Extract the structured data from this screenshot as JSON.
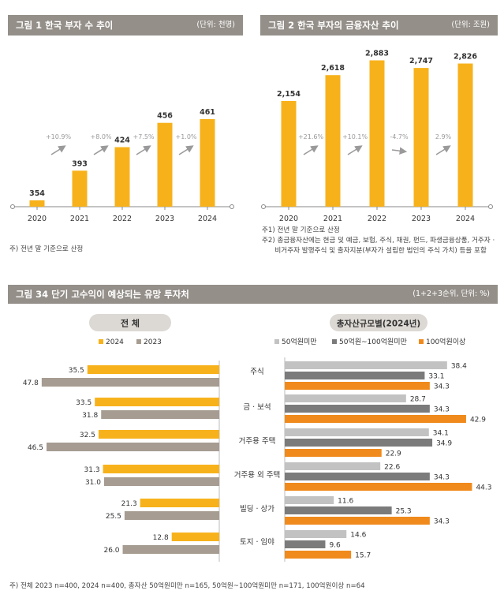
{
  "fig1": {
    "title": "그림 1  한국 부자 수 추이",
    "unit": "(단위: 천명)",
    "note": "주) 전년 말 기준으로 산정"
  },
  "fig2": {
    "title": "그림 2  한국 부자의 금융자산 추이",
    "unit": "(단위: 조원)",
    "notes": [
      "주1) 전년 말 기준으로 산정",
      "주2) 총금융자산에는 현금 및 예금, 보험, 주식, 채권, 펀드, 파생금융상품, 거주자 ·",
      "      비거주자 발행주식 및 출자지분(부자가 설립한 법인의 주식 가치) 등을 포함"
    ]
  },
  "fig34": {
    "title": "그림 34  단기 고수익이 예상되는 유망 투자처",
    "unit": "(1+2+3순위, 단위: %)",
    "left_header": "전 체",
    "right_header": "총자산규모별(2024년)",
    "note": "주) 전체 2023 n=400, 2024 n=400, 총자산 50억원미만 n=165, 50억원~100억원미만 n=171, 100억원이상 n=64"
  },
  "colors": {
    "orange": "#f7b21b",
    "taupe": "#a69c91",
    "light_gray": "#c2c2c2",
    "mid_gray": "#7b7b7b",
    "deep_orange": "#f08a1c",
    "header_gray": "#948f89"
  },
  "chart_data": [
    {
      "type": "bar",
      "title": "그림 1  한국 부자 수 추이",
      "categories": [
        "2020",
        "2021",
        "2022",
        "2023",
        "2024"
      ],
      "values": [
        354,
        393,
        424,
        456,
        461
      ],
      "growth_labels": [
        "+10.9%",
        "+8.0%",
        "+7.5%",
        "+1.0%"
      ]
    },
    {
      "type": "bar",
      "title": "그림 2  한국 부자의 금융자산 추이",
      "categories": [
        "2020",
        "2021",
        "2022",
        "2023",
        "2024"
      ],
      "values": [
        2154,
        2618,
        2883,
        2747,
        2826
      ],
      "value_labels": [
        "2,154",
        "2,618",
        "2,883",
        "2,747",
        "2,826"
      ],
      "growth_labels": [
        "+21.6%",
        "+10.1%",
        "-4.7%",
        "2.9%"
      ]
    },
    {
      "type": "bar",
      "title": "전 체",
      "orientation": "horizontal",
      "direction": "leftward",
      "categories": [
        "주식",
        "금 · 보석",
        "거주용 주택",
        "거주용 외 주택",
        "빌딩 · 상가",
        "토지 · 임야"
      ],
      "series": [
        {
          "name": "2024",
          "values": [
            35.5,
            33.5,
            32.5,
            31.3,
            21.3,
            12.8
          ]
        },
        {
          "name": "2023",
          "values": [
            47.8,
            31.8,
            46.5,
            31.0,
            25.5,
            26.0
          ]
        }
      ]
    },
    {
      "type": "bar",
      "title": "총자산규모별(2024년)",
      "orientation": "horizontal",
      "categories": [
        "주식",
        "금 · 보석",
        "거주용 주택",
        "거주용 외 주택",
        "빌딩 · 상가",
        "토지 · 임야"
      ],
      "series": [
        {
          "name": "50억원미만",
          "values": [
            38.4,
            28.7,
            34.1,
            22.6,
            11.6,
            14.6
          ]
        },
        {
          "name": "50억원~100억원미만",
          "values": [
            33.1,
            34.3,
            34.9,
            34.3,
            25.3,
            9.6
          ]
        },
        {
          "name": "100억원이상",
          "values": [
            34.3,
            42.9,
            22.9,
            44.3,
            34.3,
            15.7
          ]
        }
      ]
    }
  ]
}
